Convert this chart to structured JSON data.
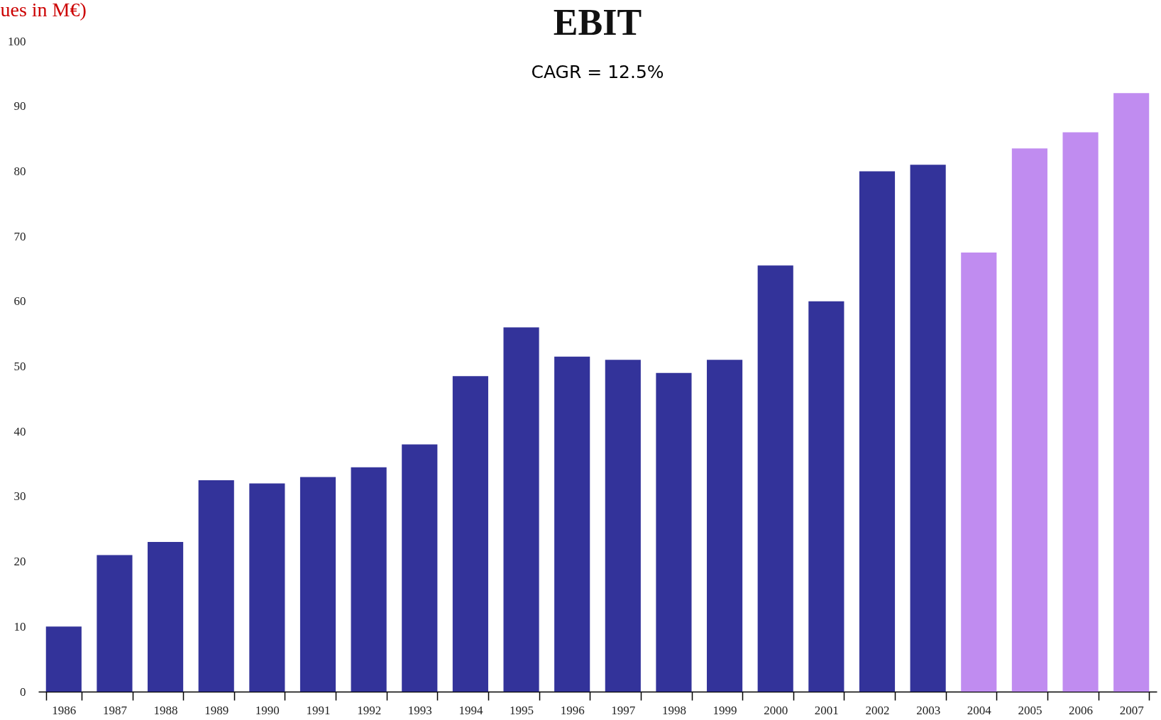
{
  "chart_data": {
    "type": "bar",
    "title": "EBIT",
    "subtitle": "CAGR = 12.5%",
    "ylabel": "ues in M€)",
    "categories": [
      "1986",
      "1987",
      "1988",
      "1989",
      "1990",
      "1991",
      "1992",
      "1993",
      "1994",
      "1995",
      "1996",
      "1997",
      "1998",
      "1999",
      "2000",
      "2001",
      "2002",
      "2003",
      "2004",
      "2005",
      "2006",
      "2007"
    ],
    "values": [
      10,
      21,
      23,
      32.5,
      32,
      33,
      34.5,
      38,
      48.5,
      56,
      51.5,
      51,
      49,
      51,
      65.5,
      60,
      80,
      81,
      67.5,
      83.5,
      86,
      92
    ],
    "colors": [
      "#33339a",
      "#33339a",
      "#33339a",
      "#33339a",
      "#33339a",
      "#33339a",
      "#33339a",
      "#33339a",
      "#33339a",
      "#33339a",
      "#33339a",
      "#33339a",
      "#33339a",
      "#33339a",
      "#33339a",
      "#33339a",
      "#33339a",
      "#33339a",
      "#c08cf0",
      "#c08cf0",
      "#c08cf0",
      "#c08cf0"
    ],
    "ylim": [
      0,
      100
    ],
    "yticks": [
      0,
      10,
      20,
      30,
      40,
      50,
      60,
      70,
      80,
      90,
      100
    ],
    "grid": false
  }
}
